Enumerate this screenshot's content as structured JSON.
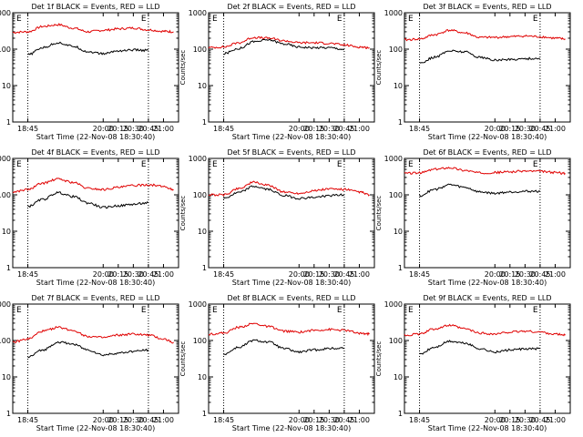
{
  "chart_data": [
    {
      "type": "line",
      "title": "Det 1f BLACK = Events, RED = LLD",
      "xlabel": "Start Time (22-Nov-08 18:30:40)",
      "ylabel": "Counts/sec",
      "markers": [
        "E",
        "E"
      ],
      "yscale": "log",
      "ylim": [
        1,
        1000
      ],
      "xlim": [
        "18:30",
        "21:15"
      ],
      "x_ticks": [
        "18:45",
        "20:00",
        "20:15",
        "20:30",
        "20:45",
        "21:00"
      ],
      "y_ticks": [
        "1",
        "10",
        "100",
        "1000"
      ],
      "vlines": [
        "18:45",
        "20:45"
      ],
      "series": [
        {
          "color": "red",
          "x": [
            "18:30",
            "18:45",
            "19:00",
            "19:15",
            "19:30",
            "19:45",
            "20:00",
            "20:15",
            "20:30",
            "20:45",
            "21:00",
            "21:10"
          ],
          "values": [
            290,
            300,
            420,
            470,
            380,
            300,
            330,
            360,
            380,
            340,
            310,
            300
          ]
        },
        {
          "color": "black",
          "x": [
            "18:45",
            "19:00",
            "19:15",
            "19:30",
            "19:45",
            "20:00",
            "20:15",
            "20:30",
            "20:45"
          ],
          "values": [
            70,
            110,
            150,
            120,
            85,
            75,
            90,
            95,
            92
          ]
        }
      ]
    },
    {
      "type": "line",
      "title": "Det 2f BLACK = Events, RED = LLD",
      "xlabel": "Start Time (22-Nov-08 18:30:40)",
      "ylabel": "Counts/sec",
      "markers": [
        "E",
        "E"
      ],
      "yscale": "log",
      "ylim": [
        1,
        1000
      ],
      "xlim": [
        "18:30",
        "21:15"
      ],
      "x_ticks": [
        "18:45",
        "20:00",
        "20:15",
        "20:30",
        "20:45",
        "21:00"
      ],
      "y_ticks": [
        "1",
        "10",
        "100",
        "1000"
      ],
      "vlines": [
        "18:45",
        "20:45"
      ],
      "series": [
        {
          "color": "red",
          "x": [
            "18:30",
            "18:45",
            "19:00",
            "19:15",
            "19:30",
            "19:45",
            "20:00",
            "20:15",
            "20:30",
            "20:45",
            "21:00",
            "21:10"
          ],
          "values": [
            110,
            115,
            150,
            210,
            200,
            170,
            150,
            150,
            145,
            130,
            115,
            110
          ]
        },
        {
          "color": "black",
          "x": [
            "18:45",
            "19:00",
            "19:15",
            "19:30",
            "19:45",
            "20:00",
            "20:15",
            "20:30",
            "20:45"
          ],
          "values": [
            75,
            105,
            160,
            180,
            140,
            115,
            110,
            110,
            100
          ]
        }
      ]
    },
    {
      "type": "line",
      "title": "Det 3f BLACK = Events, RED = LLD",
      "xlabel": "Start Time (22-Nov-08 18:30:40)",
      "ylabel": "Counts/sec",
      "markers": [
        "E",
        "E"
      ],
      "yscale": "log",
      "ylim": [
        1,
        1000
      ],
      "xlim": [
        "18:30",
        "21:15"
      ],
      "x_ticks": [
        "18:45",
        "20:00",
        "20:15",
        "20:30",
        "20:45",
        "21:00"
      ],
      "y_ticks": [
        "1",
        "10",
        "100",
        "1000"
      ],
      "vlines": [
        "18:45",
        "20:45"
      ],
      "series": [
        {
          "color": "red",
          "x": [
            "18:30",
            "18:45",
            "19:00",
            "19:15",
            "19:30",
            "19:45",
            "20:00",
            "20:15",
            "20:30",
            "20:45",
            "21:00",
            "21:10"
          ],
          "values": [
            180,
            190,
            250,
            330,
            280,
            210,
            210,
            220,
            230,
            220,
            200,
            190
          ]
        },
        {
          "color": "black",
          "x": [
            "18:45",
            "19:00",
            "19:15",
            "19:30",
            "19:45",
            "20:00",
            "20:15",
            "20:30",
            "20:45"
          ],
          "values": [
            42,
            60,
            90,
            85,
            60,
            50,
            52,
            55,
            55
          ]
        }
      ]
    },
    {
      "type": "line",
      "title": "Det 4f BLACK = Events, RED = LLD",
      "xlabel": "Start Time (22-Nov-08 18:30:40)",
      "ylabel": "Counts/sec",
      "markers": [
        "E",
        "E"
      ],
      "yscale": "log",
      "ylim": [
        1,
        1000
      ],
      "xlim": [
        "18:30",
        "21:15"
      ],
      "x_ticks": [
        "18:45",
        "20:00",
        "20:15",
        "20:30",
        "20:45",
        "21:00"
      ],
      "y_ticks": [
        "1",
        "10",
        "100",
        "1000"
      ],
      "vlines": [
        "18:45",
        "20:45"
      ],
      "series": [
        {
          "color": "red",
          "x": [
            "18:30",
            "18:45",
            "19:00",
            "19:15",
            "19:30",
            "19:45",
            "20:00",
            "20:15",
            "20:30",
            "20:45",
            "21:00",
            "21:10"
          ],
          "values": [
            120,
            140,
            210,
            270,
            220,
            150,
            140,
            160,
            180,
            190,
            170,
            140
          ]
        },
        {
          "color": "black",
          "x": [
            "18:45",
            "19:00",
            "19:15",
            "19:30",
            "19:45",
            "20:00",
            "20:15",
            "20:30",
            "20:45"
          ],
          "values": [
            48,
            75,
            115,
            90,
            60,
            45,
            50,
            55,
            60
          ]
        }
      ]
    },
    {
      "type": "line",
      "title": "Det 5f BLACK = Events, RED = LLD",
      "xlabel": "Start Time (22-Nov-08 18:30:40)",
      "ylabel": "Counts/sec",
      "markers": [
        "E",
        "E"
      ],
      "yscale": "log",
      "ylim": [
        1,
        1000
      ],
      "xlim": [
        "18:30",
        "21:15"
      ],
      "x_ticks": [
        "18:45",
        "20:00",
        "20:15",
        "20:30",
        "20:45",
        "21:00"
      ],
      "y_ticks": [
        "1",
        "10",
        "100",
        "1000"
      ],
      "vlines": [
        "18:45",
        "20:45"
      ],
      "series": [
        {
          "color": "red",
          "x": [
            "18:30",
            "18:45",
            "19:00",
            "19:15",
            "19:30",
            "19:45",
            "20:00",
            "20:15",
            "20:30",
            "20:45",
            "21:00",
            "21:10"
          ],
          "values": [
            100,
            100,
            150,
            220,
            180,
            120,
            110,
            130,
            145,
            140,
            120,
            100
          ]
        },
        {
          "color": "black",
          "x": [
            "18:45",
            "19:00",
            "19:15",
            "19:30",
            "19:45",
            "20:00",
            "20:15",
            "20:30",
            "20:45"
          ],
          "values": [
            80,
            115,
            170,
            140,
            95,
            80,
            85,
            95,
            100
          ]
        }
      ]
    },
    {
      "type": "line",
      "title": "Det 6f BLACK = Events, RED = LLD",
      "xlabel": "Start Time (22-Nov-08 18:30:40)",
      "ylabel": "Counts/sec",
      "markers": [
        "E",
        "E"
      ],
      "yscale": "log",
      "ylim": [
        1,
        1000
      ],
      "xlim": [
        "18:30",
        "21:15"
      ],
      "x_ticks": [
        "18:45",
        "20:00",
        "20:15",
        "20:30",
        "20:45",
        "21:00"
      ],
      "y_ticks": [
        "1",
        "10",
        "100",
        "1000"
      ],
      "vlines": [
        "18:45",
        "20:45"
      ],
      "series": [
        {
          "color": "red",
          "x": [
            "18:30",
            "18:45",
            "19:00",
            "19:15",
            "19:30",
            "19:45",
            "20:00",
            "20:15",
            "20:30",
            "20:45",
            "21:00",
            "21:10"
          ],
          "values": [
            390,
            400,
            500,
            560,
            470,
            400,
            410,
            430,
            450,
            440,
            410,
            390
          ]
        },
        {
          "color": "black",
          "x": [
            "18:45",
            "19:00",
            "19:15",
            "19:30",
            "19:45",
            "20:00",
            "20:15",
            "20:30",
            "20:45"
          ],
          "values": [
            95,
            140,
            190,
            160,
            120,
            110,
            120,
            125,
            125
          ]
        }
      ]
    },
    {
      "type": "line",
      "title": "Det 7f BLACK = Events, RED = LLD",
      "xlabel": "Start Time (22-Nov-08 18:30:40)",
      "ylabel": "Counts/sec",
      "markers": [
        "E",
        "E"
      ],
      "yscale": "log",
      "ylim": [
        1,
        1000
      ],
      "xlim": [
        "18:30",
        "21:15"
      ],
      "x_ticks": [
        "18:45",
        "20:00",
        "20:15",
        "20:30",
        "20:45",
        "21:00"
      ],
      "y_ticks": [
        "1",
        "10",
        "100",
        "1000"
      ],
      "vlines": [
        "18:45",
        "20:45"
      ],
      "series": [
        {
          "color": "red",
          "x": [
            "18:30",
            "18:45",
            "19:00",
            "19:15",
            "19:30",
            "19:45",
            "20:00",
            "20:15",
            "20:30",
            "20:45",
            "21:00",
            "21:10"
          ],
          "values": [
            90,
            110,
            180,
            230,
            190,
            130,
            120,
            140,
            150,
            140,
            110,
            90
          ]
        },
        {
          "color": "black",
          "x": [
            "18:45",
            "19:00",
            "19:15",
            "19:30",
            "19:45",
            "20:00",
            "20:15",
            "20:30",
            "20:45"
          ],
          "values": [
            35,
            55,
            90,
            80,
            55,
            40,
            45,
            50,
            55
          ]
        }
      ]
    },
    {
      "type": "line",
      "title": "Det 8f BLACK = Events, RED = LLD",
      "xlabel": "Start Time (22-Nov-08 18:30:40)",
      "ylabel": "Counts/sec",
      "markers": [
        "E",
        "E"
      ],
      "yscale": "log",
      "ylim": [
        1,
        1000
      ],
      "xlim": [
        "18:30",
        "21:15"
      ],
      "x_ticks": [
        "18:45",
        "20:00",
        "20:15",
        "20:30",
        "20:45",
        "21:00"
      ],
      "y_ticks": [
        "1",
        "10",
        "100",
        "1000"
      ],
      "vlines": [
        "18:45",
        "20:45"
      ],
      "series": [
        {
          "color": "red",
          "x": [
            "18:30",
            "18:45",
            "19:00",
            "19:15",
            "19:30",
            "19:45",
            "20:00",
            "20:15",
            "20:30",
            "20:45",
            "21:00",
            "21:10"
          ],
          "values": [
            150,
            160,
            230,
            290,
            240,
            180,
            170,
            190,
            200,
            190,
            160,
            150
          ]
        },
        {
          "color": "black",
          "x": [
            "18:45",
            "19:00",
            "19:15",
            "19:30",
            "19:45",
            "20:00",
            "20:15",
            "20:30",
            "20:45"
          ],
          "values": [
            42,
            65,
            100,
            90,
            60,
            48,
            55,
            60,
            62
          ]
        }
      ]
    },
    {
      "type": "line",
      "title": "Det 9f BLACK = Events, RED = LLD",
      "xlabel": "Start Time (22-Nov-08 18:30:40)",
      "ylabel": "Counts/sec",
      "markers": [
        "E",
        "E"
      ],
      "yscale": "log",
      "ylim": [
        1,
        1000
      ],
      "xlim": [
        "18:30",
        "21:15"
      ],
      "x_ticks": [
        "18:45",
        "20:00",
        "20:15",
        "20:30",
        "20:45",
        "21:00"
      ],
      "y_ticks": [
        "1",
        "10",
        "100",
        "1000"
      ],
      "vlines": [
        "18:45",
        "20:45"
      ],
      "series": [
        {
          "color": "red",
          "x": [
            "18:30",
            "18:45",
            "19:00",
            "19:15",
            "19:30",
            "19:45",
            "20:00",
            "20:15",
            "20:30",
            "20:45",
            "21:00",
            "21:10"
          ],
          "values": [
            140,
            150,
            210,
            260,
            210,
            160,
            150,
            170,
            180,
            170,
            150,
            140
          ]
        },
        {
          "color": "black",
          "x": [
            "18:45",
            "19:00",
            "19:15",
            "19:30",
            "19:45",
            "20:00",
            "20:15",
            "20:30",
            "20:45"
          ],
          "values": [
            42,
            65,
            95,
            85,
            60,
            48,
            55,
            58,
            60
          ]
        }
      ]
    }
  ],
  "colors": {
    "lld": "#e00000",
    "events": "#000000",
    "axes": "#000000",
    "background": "#ffffff"
  }
}
